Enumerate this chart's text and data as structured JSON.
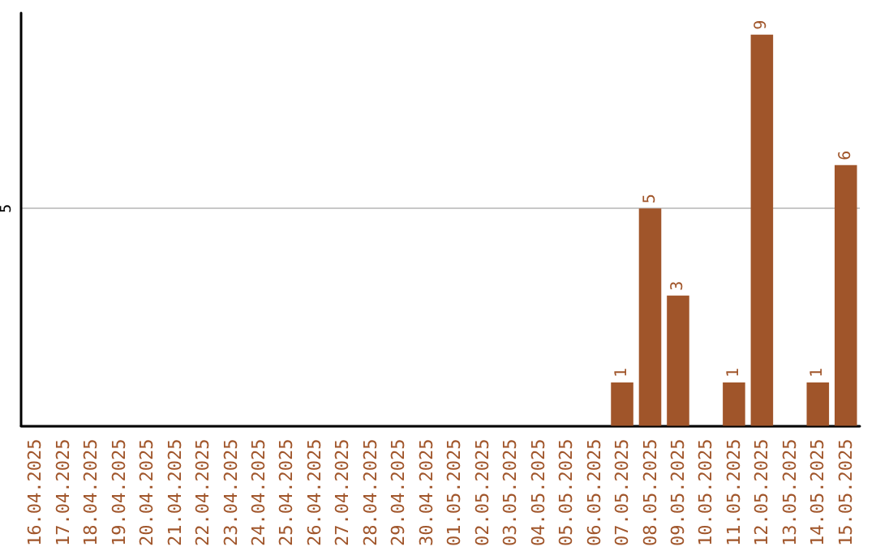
{
  "chart_data": {
    "type": "bar",
    "categories": [
      "16.04.2025",
      "17.04.2025",
      "18.04.2025",
      "19.04.2025",
      "20.04.2025",
      "21.04.2025",
      "22.04.2025",
      "23.04.2025",
      "24.04.2025",
      "25.04.2025",
      "26.04.2025",
      "27.04.2025",
      "28.04.2025",
      "29.04.2025",
      "30.04.2025",
      "01.05.2025",
      "02.05.2025",
      "03.05.2025",
      "04.05.2025",
      "05.05.2025",
      "06.05.2025",
      "07.05.2025",
      "08.05.2025",
      "09.05.2025",
      "10.05.2025",
      "11.05.2025",
      "12.05.2025",
      "13.05.2025",
      "14.05.2025",
      "15.05.2025"
    ],
    "values": [
      null,
      null,
      null,
      null,
      null,
      null,
      null,
      null,
      null,
      null,
      null,
      null,
      null,
      null,
      null,
      null,
      null,
      null,
      null,
      null,
      null,
      1,
      5,
      3,
      null,
      1,
      9,
      null,
      1,
      6
    ],
    "value_labels": [
      null,
      null,
      null,
      null,
      null,
      null,
      null,
      null,
      null,
      null,
      null,
      null,
      null,
      null,
      null,
      null,
      null,
      null,
      null,
      null,
      null,
      "1",
      "5",
      "3",
      null,
      "1",
      "9",
      null,
      "1",
      "6"
    ],
    "color": "#a0552a",
    "ylim": [
      0,
      9.5
    ],
    "yticks": [
      {
        "value": 0,
        "label": null
      },
      5
    ],
    "grid": "y"
  }
}
